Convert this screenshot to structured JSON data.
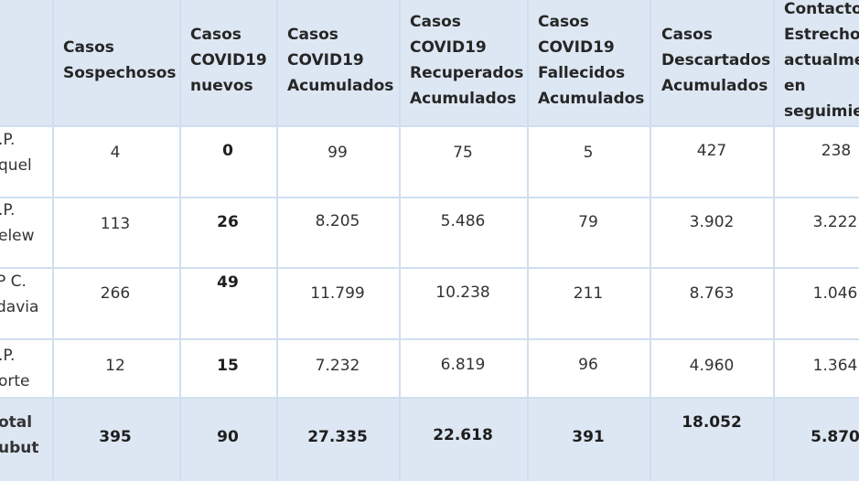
{
  "table": {
    "headers": [
      "Casos\nSospechosos",
      "Casos\nCOVID19\nnuevos",
      "Casos\nCOVID19\nAcumulados",
      "Casos\nCOVID19\nRecuperados\nAcumulados",
      "Casos\nCOVID19\nFallecidos\nAcumulados",
      "Casos\nDescartados\nAcumulados",
      "Contactos\nEstrechos\nactualme\nen\nseguimien"
    ],
    "rows": [
      {
        "label": ".P.\nquel",
        "values": [
          "4",
          "0",
          "99",
          "75",
          "5",
          "427",
          "238"
        ]
      },
      {
        "label": ".P.\nelew",
        "values": [
          "113",
          "26",
          "8.205",
          "5.486",
          "79",
          "3.902",
          "3.222"
        ]
      },
      {
        "label": "P C.\ndavia",
        "values": [
          "266",
          "49",
          "11.799",
          "10.238",
          "211",
          "8.763",
          "1.046"
        ]
      },
      {
        "label": ".P.\norte",
        "values": [
          "12",
          "15",
          "7.232",
          "6.819",
          "96",
          "4.960",
          "1.364"
        ]
      }
    ],
    "total": {
      "label": "otal\nubut",
      "values": [
        "395",
        "90",
        "27.335",
        "22.618",
        "391",
        "18.052",
        "5.870"
      ]
    }
  }
}
